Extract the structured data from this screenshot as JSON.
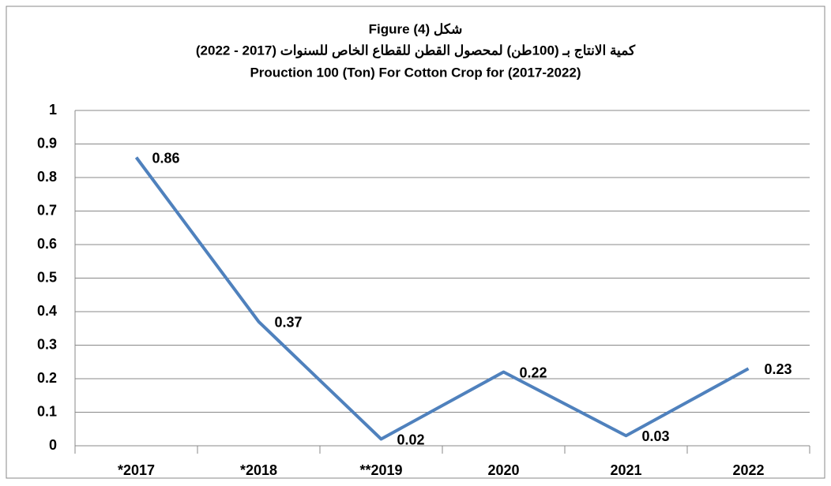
{
  "chart_data": {
    "type": "line",
    "title": [
      "Figure (4) شكل",
      "كمية الانتاج بـ (100طن) لمحصول القطن للقطاع الخاص للسنوات (2017 - 2022)",
      "Prouction 100 (Ton) For Cotton Crop for (2017-2022)"
    ],
    "categories": [
      "*2017",
      "*2018",
      "**2019",
      "2020",
      "2021",
      "2022"
    ],
    "values": [
      0.86,
      0.37,
      0.02,
      0.22,
      0.03,
      0.23
    ],
    "color": "#4f81bd",
    "ylim": [
      0,
      1
    ],
    "yticks": [
      0,
      0.1,
      0.2,
      0.3,
      0.4,
      0.5,
      0.6,
      0.7,
      0.8,
      0.9,
      1
    ],
    "grid": true
  }
}
